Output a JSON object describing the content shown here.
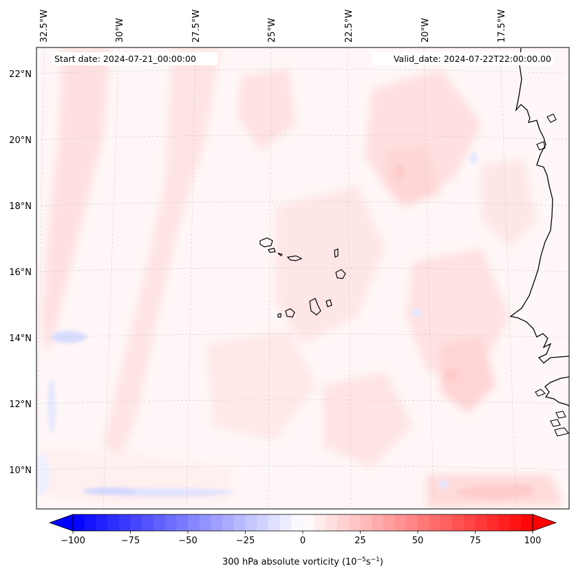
{
  "header": {
    "start_date": "Start date: 2024-07-21_00:00:00",
    "valid_date": "Valid_date: 2024-07-22T22:00:00.00"
  },
  "map": {
    "lon_labels": [
      "32.5°W",
      "30°W",
      "27.5°W",
      "25°W",
      "22.5°W",
      "20°W",
      "17.5°W"
    ],
    "lat_labels": [
      "22°N",
      "20°N",
      "18°N",
      "16°N",
      "14°N",
      "12°N",
      "10°N"
    ],
    "region": "Cape Verde / West Africa coast",
    "field_colors": {
      "positive": "#ff0000",
      "negative": "#0000ff",
      "neutral": "#ffffff"
    }
  },
  "colorbar": {
    "ticks": [
      "−100",
      "−75",
      "−50",
      "−25",
      "0",
      "25",
      "50",
      "75",
      "100"
    ],
    "tick_values": [
      -100,
      -75,
      -50,
      -25,
      0,
      25,
      50,
      75,
      100
    ],
    "vmin": -100,
    "vmax": 100,
    "label_main": "300 hPa absolute vorticity (10",
    "label_exp1": "−5",
    "label_mid": "s",
    "label_exp2": "−1",
    "label_end": ")",
    "cmap": "bwr"
  }
}
